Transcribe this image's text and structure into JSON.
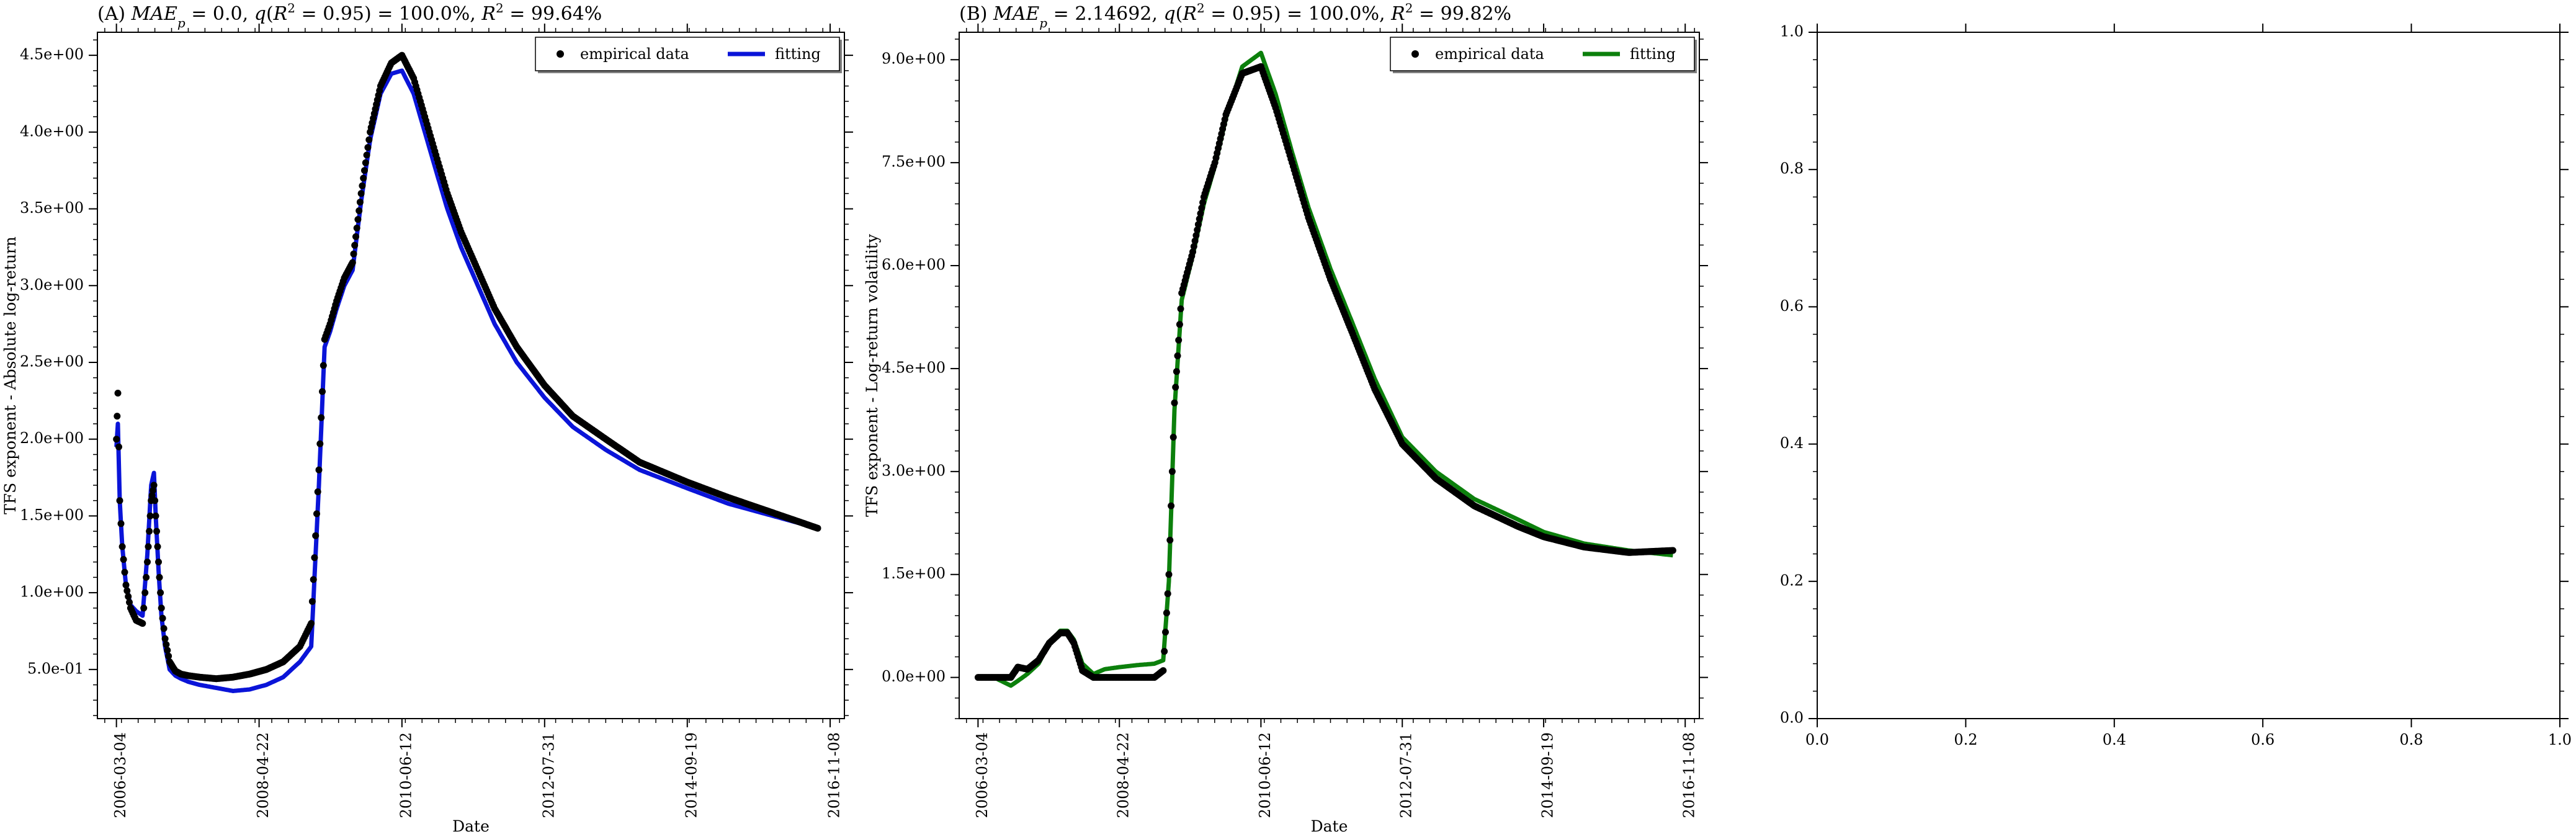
{
  "figure": {
    "panels": 3
  },
  "chart_data": [
    {
      "type": "scatter",
      "panel": "A",
      "title_prefix": "(A) ",
      "title_metrics": {
        "MAE_p": "0.0",
        "q_R2_095": "100.0%",
        "R2": "99.64%"
      },
      "xlabel": "Date",
      "ylabel": "TFS exponent - Absolute log-return",
      "x_type": "date",
      "xlim": [
        "2005-11-20",
        "2017-01-25"
      ],
      "ylim": [
        0.18,
        4.65
      ],
      "x_ticks": [
        "2006-03-04",
        "2008-04-22",
        "2010-06-12",
        "2012-07-31",
        "2014-09-19",
        "2016-11-08"
      ],
      "y_ticks": [
        0.5,
        1.0,
        1.5,
        2.0,
        2.5,
        3.0,
        3.5,
        4.0,
        4.5
      ],
      "y_tick_labels": [
        "5.0e-01",
        "1.0e+00",
        "1.5e+00",
        "2.0e+00",
        "2.5e+00",
        "3.0e+00",
        "3.5e+00",
        "4.0e+00",
        "4.5e+00"
      ],
      "grid": false,
      "legend_position": "top-right",
      "legend": [
        "empirical data",
        "fitting"
      ],
      "fit_color": "#0a14d8",
      "data_color": "#000000",
      "series": [
        {
          "name": "empirical data",
          "style": "points",
          "x": [
            "2006-03-04",
            "2006-03-12",
            "2006-03-22",
            "2006-04-05",
            "2006-04-25",
            "2006-05-20",
            "2006-06-20",
            "2006-07-25",
            "2006-08-20",
            "2006-09-10",
            "2006-09-25",
            "2006-10-05",
            "2006-10-20",
            "2006-11-05",
            "2006-11-25",
            "2006-12-20",
            "2007-01-20",
            "2007-02-20",
            "2007-04-01",
            "2007-06-01",
            "2007-09-01",
            "2007-12-01",
            "2008-03-01",
            "2008-06-01",
            "2008-09-01",
            "2008-12-01",
            "2009-02-01",
            "2009-03-15",
            "2009-04-15",
            "2009-05-15",
            "2009-06-20",
            "2009-08-01",
            "2009-09-15",
            "2009-11-01",
            "2009-12-20",
            "2010-02-15",
            "2010-04-15",
            "2010-06-12",
            "2010-08-15",
            "2010-10-15",
            "2010-12-15",
            "2011-02-15",
            "2011-05-01",
            "2011-08-01",
            "2011-11-01",
            "2012-03-01",
            "2012-07-31",
            "2013-01-01",
            "2013-07-01",
            "2014-01-01",
            "2014-09-19",
            "2015-05-01",
            "2016-01-01",
            "2016-09-01"
          ],
          "y": [
            2.0,
            2.3,
            1.6,
            1.3,
            1.05,
            0.9,
            0.82,
            0.8,
            1.2,
            1.6,
            1.7,
            1.5,
            1.2,
            0.9,
            0.7,
            0.55,
            0.49,
            0.47,
            0.46,
            0.45,
            0.44,
            0.45,
            0.47,
            0.5,
            0.55,
            0.65,
            0.8,
            1.8,
            2.65,
            2.75,
            2.9,
            3.05,
            3.15,
            3.6,
            4.0,
            4.3,
            4.45,
            4.5,
            4.35,
            4.1,
            3.85,
            3.6,
            3.35,
            3.1,
            2.85,
            2.6,
            2.35,
            2.15,
            2.0,
            1.85,
            1.72,
            1.62,
            1.52,
            1.42
          ]
        },
        {
          "name": "fitting",
          "style": "line",
          "x": [
            "2006-03-04",
            "2006-03-12",
            "2006-03-22",
            "2006-04-05",
            "2006-04-25",
            "2006-05-20",
            "2006-06-20",
            "2006-07-25",
            "2006-08-20",
            "2006-09-10",
            "2006-09-25",
            "2006-10-05",
            "2006-10-20",
            "2006-11-05",
            "2006-11-25",
            "2006-12-20",
            "2007-01-20",
            "2007-02-20",
            "2007-04-01",
            "2007-06-01",
            "2007-09-01",
            "2007-12-01",
            "2008-03-01",
            "2008-06-01",
            "2008-09-01",
            "2008-12-01",
            "2009-02-01",
            "2009-03-15",
            "2009-04-15",
            "2009-05-15",
            "2009-06-20",
            "2009-08-01",
            "2009-09-15",
            "2009-11-01",
            "2009-12-20",
            "2010-02-15",
            "2010-04-15",
            "2010-06-12",
            "2010-08-15",
            "2010-10-15",
            "2010-12-15",
            "2011-02-15",
            "2011-05-01",
            "2011-08-01",
            "2011-11-01",
            "2012-03-01",
            "2012-07-31",
            "2013-01-01",
            "2013-07-01",
            "2014-01-01",
            "2014-09-19",
            "2015-05-01",
            "2016-01-01",
            "2016-09-01"
          ],
          "y": [
            1.95,
            2.1,
            1.6,
            1.3,
            1.05,
            0.92,
            0.88,
            0.85,
            1.25,
            1.7,
            1.78,
            1.5,
            1.15,
            0.85,
            0.65,
            0.5,
            0.46,
            0.44,
            0.42,
            0.4,
            0.38,
            0.36,
            0.37,
            0.4,
            0.45,
            0.55,
            0.65,
            1.7,
            2.6,
            2.7,
            2.85,
            3.0,
            3.1,
            3.55,
            3.95,
            4.25,
            4.38,
            4.4,
            4.25,
            4.0,
            3.75,
            3.5,
            3.25,
            3.0,
            2.75,
            2.5,
            2.27,
            2.08,
            1.93,
            1.8,
            1.68,
            1.58,
            1.5,
            1.42
          ]
        }
      ]
    },
    {
      "type": "scatter",
      "panel": "B",
      "title_prefix": "(B) ",
      "title_metrics": {
        "MAE_p": "2.14692",
        "q_R2_095": "100.0%",
        "R2": "99.82%"
      },
      "xlabel": "Date",
      "ylabel": "TFS exponent - Log-return volatility",
      "x_type": "date",
      "xlim": [
        "2005-11-20",
        "2017-01-25"
      ],
      "ylim": [
        -0.6,
        9.4
      ],
      "x_ticks": [
        "2006-03-04",
        "2008-04-22",
        "2010-06-12",
        "2012-07-31",
        "2014-09-19",
        "2016-11-08"
      ],
      "y_ticks": [
        0,
        1.5,
        3.0,
        4.5,
        6.0,
        7.5,
        9.0
      ],
      "y_tick_labels": [
        "0.0e+00",
        "1.5e+00",
        "3.0e+00",
        "4.5e+00",
        "6.0e+00",
        "7.5e+00",
        "9.0e+00"
      ],
      "grid": false,
      "legend_position": "top-right",
      "legend": [
        "empirical data",
        "fitting"
      ],
      "fit_color": "#0c800c",
      "data_color": "#000000",
      "series": [
        {
          "name": "empirical data",
          "style": "points",
          "x": [
            "2006-03-04",
            "2006-06-01",
            "2006-09-01",
            "2006-10-10",
            "2006-12-01",
            "2007-02-01",
            "2007-04-01",
            "2007-06-01",
            "2007-07-10",
            "2007-08-15",
            "2007-10-01",
            "2007-12-01",
            "2008-02-01",
            "2008-04-22",
            "2008-08-01",
            "2008-11-01",
            "2008-12-20",
            "2009-01-20",
            "2009-02-20",
            "2009-04-01",
            "2009-06-01",
            "2009-08-01",
            "2009-10-01",
            "2009-12-01",
            "2010-03-01",
            "2010-06-12",
            "2010-09-01",
            "2010-12-01",
            "2011-03-01",
            "2011-07-01",
            "2011-11-01",
            "2012-03-01",
            "2012-07-31",
            "2013-02-01",
            "2013-09-01",
            "2014-05-01",
            "2014-09-19",
            "2015-05-01",
            "2016-01-01",
            "2016-09-01"
          ],
          "y": [
            0.0,
            0.0,
            0.0,
            0.15,
            0.12,
            0.25,
            0.5,
            0.65,
            0.65,
            0.5,
            0.1,
            0.0,
            0.0,
            0.0,
            0.0,
            0.0,
            0.1,
            1.5,
            4.0,
            5.6,
            6.2,
            7.0,
            7.5,
            8.2,
            8.8,
            8.9,
            8.3,
            7.5,
            6.7,
            5.8,
            5.0,
            4.2,
            3.4,
            2.9,
            2.5,
            2.2,
            2.05,
            1.9,
            1.82,
            1.85
          ]
        },
        {
          "name": "fitting",
          "style": "line",
          "x": [
            "2006-03-04",
            "2006-06-01",
            "2006-09-01",
            "2006-10-10",
            "2006-12-01",
            "2007-02-01",
            "2007-04-01",
            "2007-06-01",
            "2007-07-10",
            "2007-08-15",
            "2007-10-01",
            "2007-12-01",
            "2008-02-01",
            "2008-04-22",
            "2008-08-01",
            "2008-11-01",
            "2008-12-20",
            "2009-01-20",
            "2009-02-20",
            "2009-04-01",
            "2009-06-01",
            "2009-08-01",
            "2009-10-01",
            "2009-12-01",
            "2010-03-01",
            "2010-06-12",
            "2010-09-01",
            "2010-12-01",
            "2011-03-01",
            "2011-07-01",
            "2011-11-01",
            "2012-03-01",
            "2012-07-31",
            "2013-02-01",
            "2013-09-01",
            "2014-05-01",
            "2014-09-19",
            "2015-05-01",
            "2016-01-01",
            "2016-09-01"
          ],
          "y": [
            0.0,
            0.0,
            -0.12,
            -0.05,
            0.05,
            0.2,
            0.5,
            0.68,
            0.68,
            0.55,
            0.2,
            0.05,
            0.12,
            0.15,
            0.18,
            0.2,
            0.25,
            1.4,
            3.9,
            5.5,
            6.15,
            6.9,
            7.45,
            8.15,
            8.9,
            9.1,
            8.5,
            7.65,
            6.85,
            5.95,
            5.15,
            4.35,
            3.5,
            3.0,
            2.6,
            2.3,
            2.12,
            1.95,
            1.85,
            1.78
          ]
        }
      ]
    },
    {
      "type": "line",
      "panel": "C",
      "empty": true,
      "xlim": [
        0.0,
        1.0
      ],
      "ylim": [
        0.0,
        1.0
      ],
      "x_ticks": [
        0.0,
        0.2,
        0.4,
        0.6,
        0.8,
        1.0
      ],
      "y_ticks": [
        0.0,
        0.2,
        0.4,
        0.6,
        0.8,
        1.0
      ],
      "x_tick_labels": [
        "0.0",
        "0.2",
        "0.4",
        "0.6",
        "0.8",
        "1.0"
      ],
      "y_tick_labels": [
        "0.0",
        "0.2",
        "0.4",
        "0.6",
        "0.8",
        "1.0"
      ],
      "grid": false,
      "series": []
    }
  ]
}
